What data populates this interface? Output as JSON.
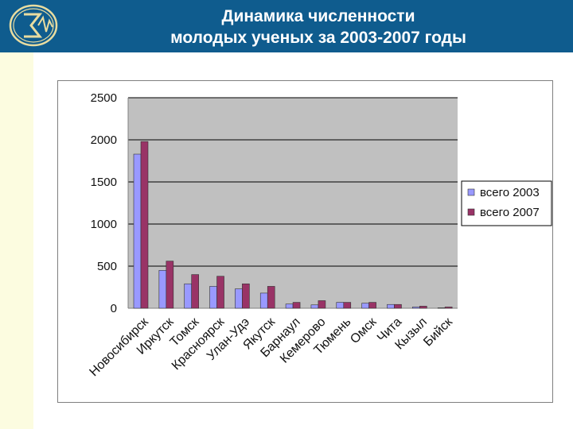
{
  "header": {
    "title_line1": "Динамика численности",
    "title_line2": "молодых ученых за 2003-2007 годы",
    "logo_icon": "sigma-wave-emblem-icon",
    "background_color": "#0f5c8e"
  },
  "chart_data": {
    "type": "bar",
    "title": "Динамика численности молодых ученых за 2003-2007 годы",
    "xlabel": "",
    "ylabel": "",
    "ylim": [
      0,
      2500
    ],
    "yticks": [
      0,
      500,
      1000,
      1500,
      2000,
      2500
    ],
    "ytick_labels": [
      "0",
      "500",
      "1000",
      "1500",
      "2000",
      "2500"
    ],
    "grid": true,
    "plot_background": "#c0c0c0",
    "legend_position": "right",
    "categories": [
      "Новосибирск",
      "Иркутск",
      "Томск",
      "Красноярск",
      "Улан-Удэ",
      "Якутск",
      "Барнаул",
      "Кемерово",
      "Тюмень",
      "Омск",
      "Чита",
      "Кызыл",
      "Бийск"
    ],
    "series": [
      {
        "name": "всего 2003",
        "color": "#9999ff",
        "values": [
          1830,
          450,
          290,
          260,
          230,
          180,
          50,
          40,
          70,
          60,
          45,
          15,
          5
        ]
      },
      {
        "name": "всего 2007",
        "color": "#993366",
        "values": [
          1980,
          560,
          400,
          380,
          290,
          260,
          70,
          90,
          70,
          70,
          45,
          25,
          15
        ]
      }
    ]
  }
}
